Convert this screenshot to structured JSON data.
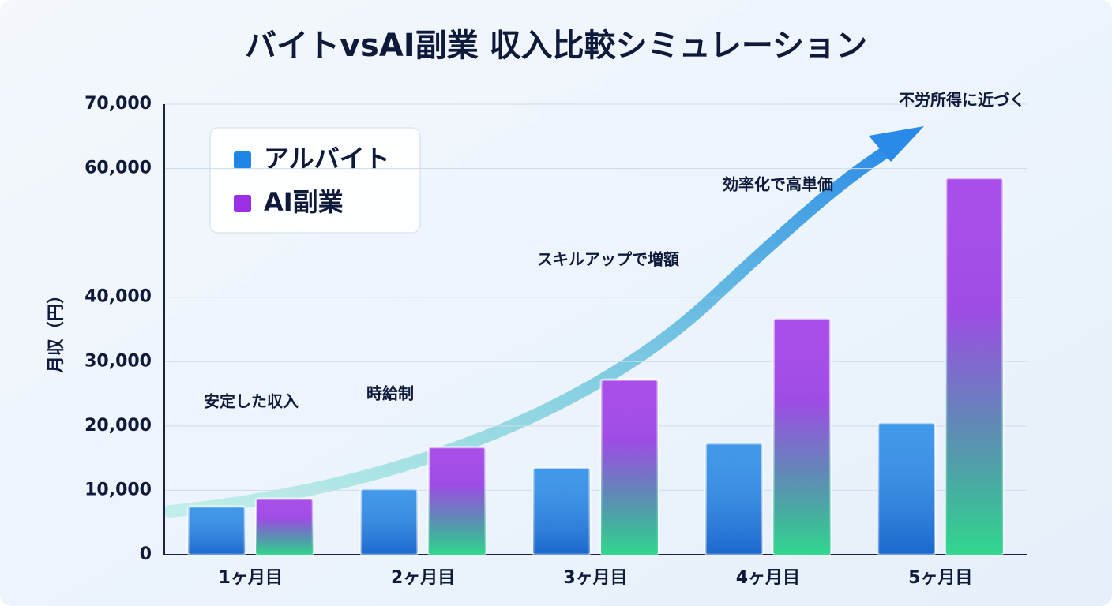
{
  "chart_data": {
    "type": "bar",
    "title": "バイトvsAI副業 収入比較シミュレーション",
    "y_label": "月収（円）",
    "categories": [
      "1ヶ月目",
      "2ヶ月目",
      "3ヶ月目",
      "4ヶ月目",
      "5ヶ月目"
    ],
    "series": [
      {
        "name": "アルバイト",
        "color": "#1f86e6",
        "values": [
          7500,
          10200,
          13500,
          17300,
          20500
        ]
      },
      {
        "name": "AI副業",
        "color": "#9a2fe6",
        "values": [
          8700,
          16700,
          27200,
          36700,
          58500
        ]
      }
    ],
    "ylim": [
      0,
      70000
    ],
    "yticks": [
      0,
      {
        "value": 10000,
        "label": "10,000"
      },
      {
        "value": 20000,
        "label": "20,000"
      },
      {
        "value": 30000,
        "label": "30,000"
      },
      {
        "value": 40000,
        "label": "40,000"
      },
      {
        "value": 60000,
        "label": "60,000"
      },
      {
        "value": 70000,
        "label": "70,000"
      }
    ],
    "grid": true,
    "legend": "upper left",
    "annotations": [
      "安定した収入",
      "時給制",
      "スキルアップで増額",
      "効率化で高単価",
      "不労所得に近づく"
    ]
  }
}
